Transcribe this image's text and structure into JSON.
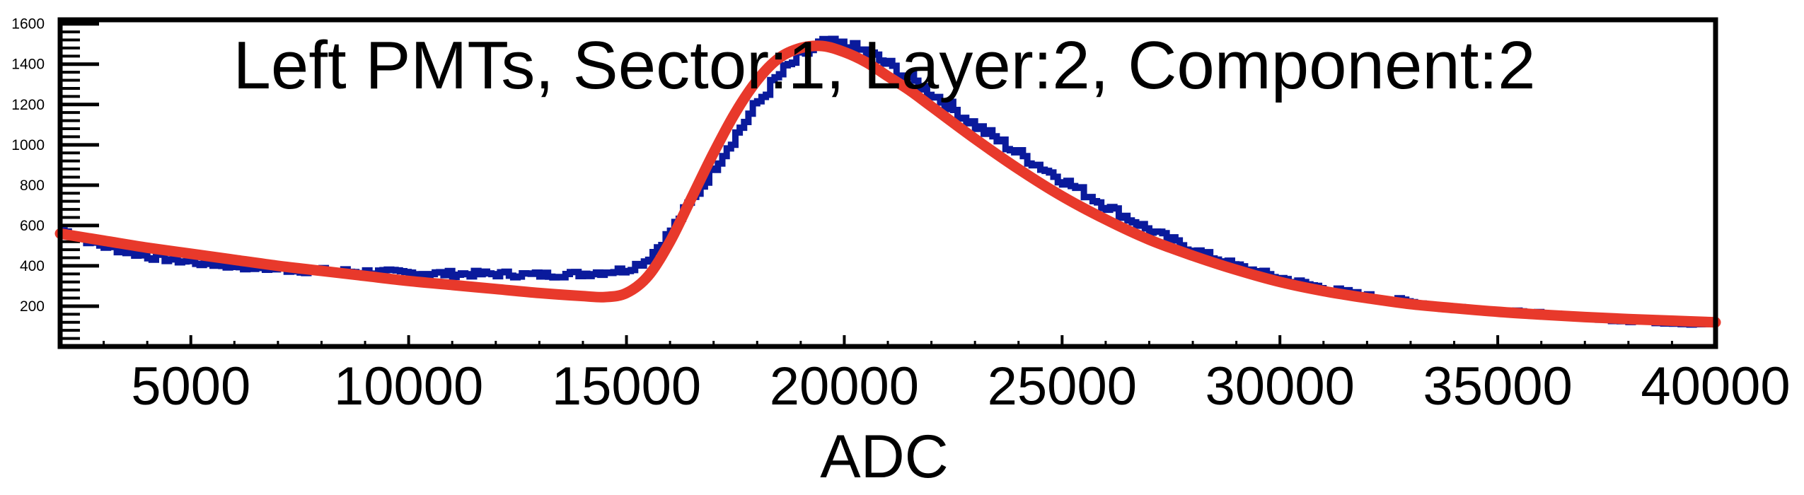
{
  "chart_data": {
    "type": "line",
    "title": "Left PMTs, Sector:1, Layer:2, Component:2",
    "xlabel": "ADC",
    "ylabel": "",
    "xlim": [
      2000,
      40000
    ],
    "ylim": [
      0,
      1620
    ],
    "x_ticks": [
      5000,
      10000,
      15000,
      20000,
      25000,
      30000,
      35000,
      40000
    ],
    "y_ticks": [
      200,
      400,
      600,
      800,
      1000,
      1200,
      1400,
      1600
    ],
    "grid": false,
    "legend": "none",
    "series": [
      {
        "kind": "histogram",
        "color": "#0a1a9c",
        "x": [
          2000,
          3000,
          4000,
          5000,
          6000,
          7000,
          8000,
          9000,
          10000,
          11000,
          12000,
          13000,
          14000,
          15000,
          15500,
          16000,
          16500,
          17000,
          17500,
          18000,
          18500,
          19000,
          19500,
          20000,
          20500,
          21000,
          21500,
          22000,
          23000,
          24000,
          25000,
          26000,
          27000,
          28000,
          29000,
          30000,
          31000,
          32000,
          33000,
          34000,
          35000,
          36000,
          37000,
          38000,
          39000,
          40000
        ],
        "values": [
          580,
          500,
          450,
          420,
          400,
          385,
          375,
          370,
          365,
          360,
          360,
          355,
          360,
          380,
          430,
          560,
          720,
          880,
          1040,
          1200,
          1340,
          1440,
          1500,
          1490,
          1460,
          1400,
          1330,
          1260,
          1100,
          960,
          830,
          700,
          580,
          480,
          400,
          340,
          290,
          250,
          220,
          195,
          175,
          160,
          145,
          130,
          120,
          110
        ]
      },
      {
        "kind": "fit",
        "color": "#e8392b",
        "x": [
          2000,
          3000,
          4000,
          5000,
          6000,
          7000,
          8000,
          9000,
          10000,
          11000,
          12000,
          13000,
          14000,
          14500,
          15000,
          15500,
          16000,
          16500,
          17000,
          17500,
          18000,
          18500,
          19000,
          19500,
          20000,
          20500,
          21000,
          21500,
          22000,
          23000,
          24000,
          25000,
          26000,
          27000,
          28000,
          29000,
          30000,
          31000,
          32000,
          33000,
          34000,
          35000,
          36000,
          37000,
          38000,
          39000,
          40000
        ],
        "values": [
          560,
          525,
          490,
          460,
          430,
          400,
          375,
          350,
          325,
          305,
          285,
          265,
          250,
          245,
          265,
          350,
          520,
          740,
          960,
          1160,
          1320,
          1430,
          1480,
          1490,
          1460,
          1410,
          1340,
          1270,
          1190,
          1030,
          880,
          745,
          630,
          530,
          450,
          380,
          320,
          275,
          240,
          210,
          190,
          172,
          158,
          146,
          136,
          128,
          120
        ]
      }
    ]
  }
}
